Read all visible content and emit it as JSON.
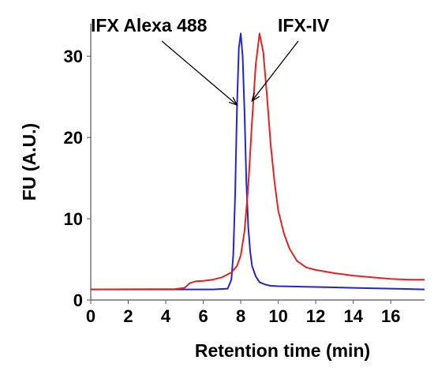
{
  "chart_data": {
    "type": "line",
    "xlabel": "Retention time (min)",
    "ylabel": "FU (A.U.)",
    "xlim": [
      0,
      17.8
    ],
    "ylim": [
      0,
      34
    ],
    "x_ticks": [
      0,
      2,
      4,
      6,
      8,
      10,
      12,
      14,
      16
    ],
    "y_ticks": [
      0,
      10,
      20,
      30
    ],
    "x_tick_labels": [
      "0",
      "2",
      "4",
      "6",
      "8",
      "10",
      "12",
      "14",
      "16"
    ],
    "y_tick_labels": [
      "0",
      "10",
      "20",
      "30"
    ],
    "grid": false,
    "series": [
      {
        "name": "IFX Alexa 488",
        "color": "#2525c8",
        "x": [
          0,
          4.0,
          6.5,
          7.3,
          7.5,
          7.6,
          7.7,
          7.8,
          7.9,
          8.0,
          8.1,
          8.2,
          8.3,
          8.4,
          8.5,
          8.6,
          8.8,
          9.0,
          9.3,
          9.6,
          10.0,
          11.0,
          12.0,
          13.0,
          14.0,
          15.0,
          16.0,
          17.0,
          17.8
        ],
        "y": [
          1.3,
          1.3,
          1.3,
          1.4,
          2.5,
          5.5,
          13.0,
          24.0,
          31.0,
          32.8,
          30.0,
          23.0,
          14.5,
          9.0,
          6.0,
          4.2,
          2.9,
          2.2,
          1.9,
          1.75,
          1.7,
          1.65,
          1.6,
          1.55,
          1.5,
          1.45,
          1.4,
          1.35,
          1.3
        ]
      },
      {
        "name": "IFX-IV",
        "color": "#e02424",
        "x": [
          0,
          4.5,
          5.0,
          5.3,
          5.6,
          6.0,
          6.5,
          7.0,
          7.5,
          7.8,
          8.0,
          8.2,
          8.4,
          8.6,
          8.8,
          9.0,
          9.2,
          9.4,
          9.6,
          9.8,
          10.0,
          10.3,
          10.6,
          11.0,
          11.5,
          12.0,
          13.0,
          14.0,
          15.0,
          16.0,
          17.0,
          17.8
        ],
        "y": [
          1.3,
          1.35,
          1.5,
          2.1,
          2.3,
          2.35,
          2.5,
          2.8,
          3.4,
          4.2,
          5.5,
          8.5,
          14.0,
          22.0,
          29.0,
          32.8,
          30.5,
          25.0,
          19.0,
          14.5,
          11.0,
          8.2,
          6.3,
          4.8,
          4.0,
          3.7,
          3.3,
          3.0,
          2.8,
          2.6,
          2.5,
          2.5
        ]
      }
    ],
    "annotations": [
      {
        "text": "IFX Alexa 488",
        "series": "IFX Alexa 488",
        "arrow_to": [
          7.8,
          24.0
        ]
      },
      {
        "text": "IFX-IV",
        "series": "IFX-IV",
        "arrow_to": [
          8.6,
          24.5
        ]
      }
    ]
  }
}
